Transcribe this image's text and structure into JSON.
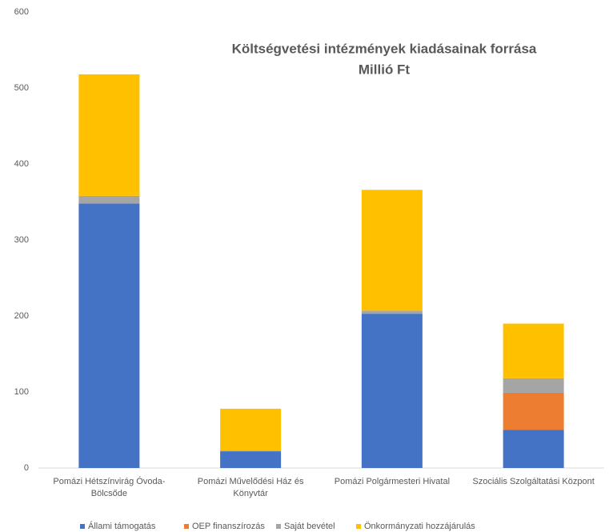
{
  "chart_data": {
    "type": "stacked_bar",
    "title": "Költségvetési intézmények kiadásainak forrása",
    "subtitle": "Millió Ft",
    "categories": [
      "Pomázi Hétszínvirág Óvoda-Bölcsőde",
      "Pomázi Művelődési Ház és Könyvtár",
      "Pomázi Polgármesteri Hivatal",
      "Szociális Szolgáltatási Központ"
    ],
    "series": [
      {
        "name": "Állami támogatás",
        "color": "#4472c4",
        "values": [
          348,
          22,
          203,
          50
        ]
      },
      {
        "name": "OEP finanszírozás",
        "color": "#ed7d31",
        "values": [
          0,
          0,
          0,
          49
        ]
      },
      {
        "name": "Saját bevétel",
        "color": "#a5a5a5",
        "values": [
          10,
          1,
          4,
          19
        ]
      },
      {
        "name": "Önkormányzati hozzájárulás",
        "color": "#ffc000",
        "values": [
          160,
          55,
          159,
          72
        ]
      }
    ],
    "ylim": [
      0,
      600
    ],
    "yticks": [
      0,
      100,
      200,
      300,
      400,
      500,
      600
    ],
    "grid": false,
    "legend": "bottom"
  }
}
